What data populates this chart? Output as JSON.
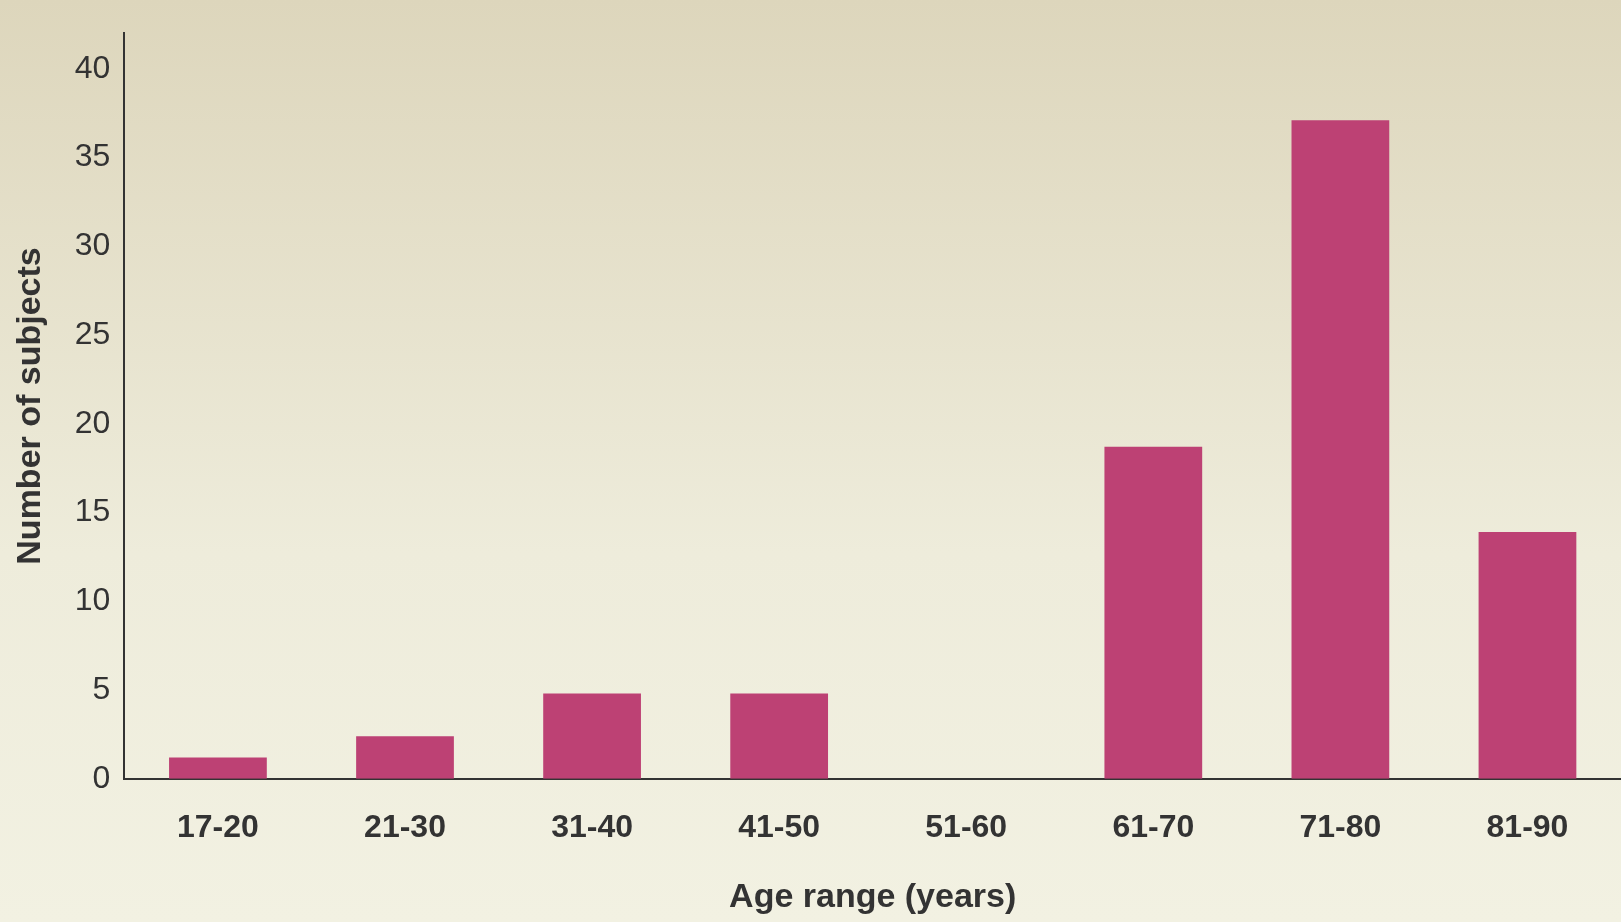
{
  "chart_data": {
    "type": "bar",
    "xlabel": "Age range (years)",
    "ylabel": "Number of subjects",
    "categories": [
      "17-20",
      "21-30",
      "31-40",
      "41-50",
      "51-60",
      "61-70",
      "71-80",
      "81-90"
    ],
    "values": [
      1.2,
      2.4,
      4.8,
      4.8,
      0,
      18.7,
      37.1,
      13.9
    ],
    "color": "#bd4174",
    "ylim": [
      0,
      42
    ],
    "yticks": [
      0,
      5,
      10,
      15,
      20,
      25,
      30,
      35,
      40
    ],
    "grid": false,
    "legend": false
  }
}
